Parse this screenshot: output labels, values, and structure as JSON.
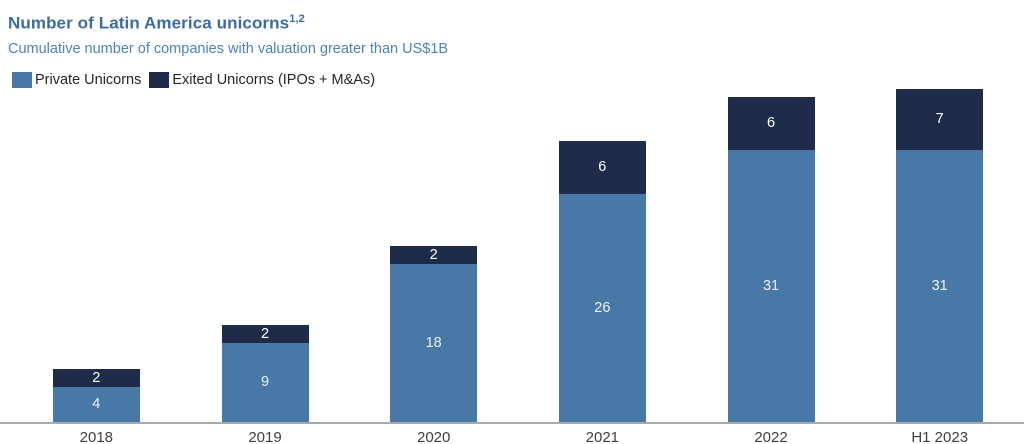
{
  "header": {
    "title": "Number of Latin America unicorns",
    "title_superscript": "1,2",
    "subtitle": "Cumulative number of companies with valuation greater than US$1B",
    "title_color": "#3A6CA3",
    "subtitle_color": "#4C83BB"
  },
  "chart_data": {
    "type": "bar",
    "stacked": true,
    "title": "Number of Latin America unicorns",
    "subtitle": "Cumulative number of companies with valuation greater than US$1B",
    "categories": [
      "2018",
      "2019",
      "2020",
      "2021",
      "2022",
      "H1 2023"
    ],
    "series": [
      {
        "name": "Private Unicorns",
        "color": "#4878A6",
        "label_color": "#EAF2FA",
        "values": [
          4,
          9,
          18,
          26,
          31,
          31
        ]
      },
      {
        "name": "Exited Unicorns (IPOs + M&As)",
        "color": "#1E2C49",
        "label_color": "#FFFFFF",
        "values": [
          2,
          2,
          2,
          6,
          6,
          7
        ]
      }
    ],
    "totals": [
      6,
      11,
      20,
      32,
      37,
      38
    ],
    "xlabel": "",
    "ylabel": "",
    "ylim": [
      0,
      38
    ],
    "grid": false,
    "y_axis_shown": false,
    "value_labels": "inside-center",
    "legend_position": "top-left",
    "axis_line_color": "#A9A9A9",
    "tick_label_color": "#3F3F3F"
  }
}
